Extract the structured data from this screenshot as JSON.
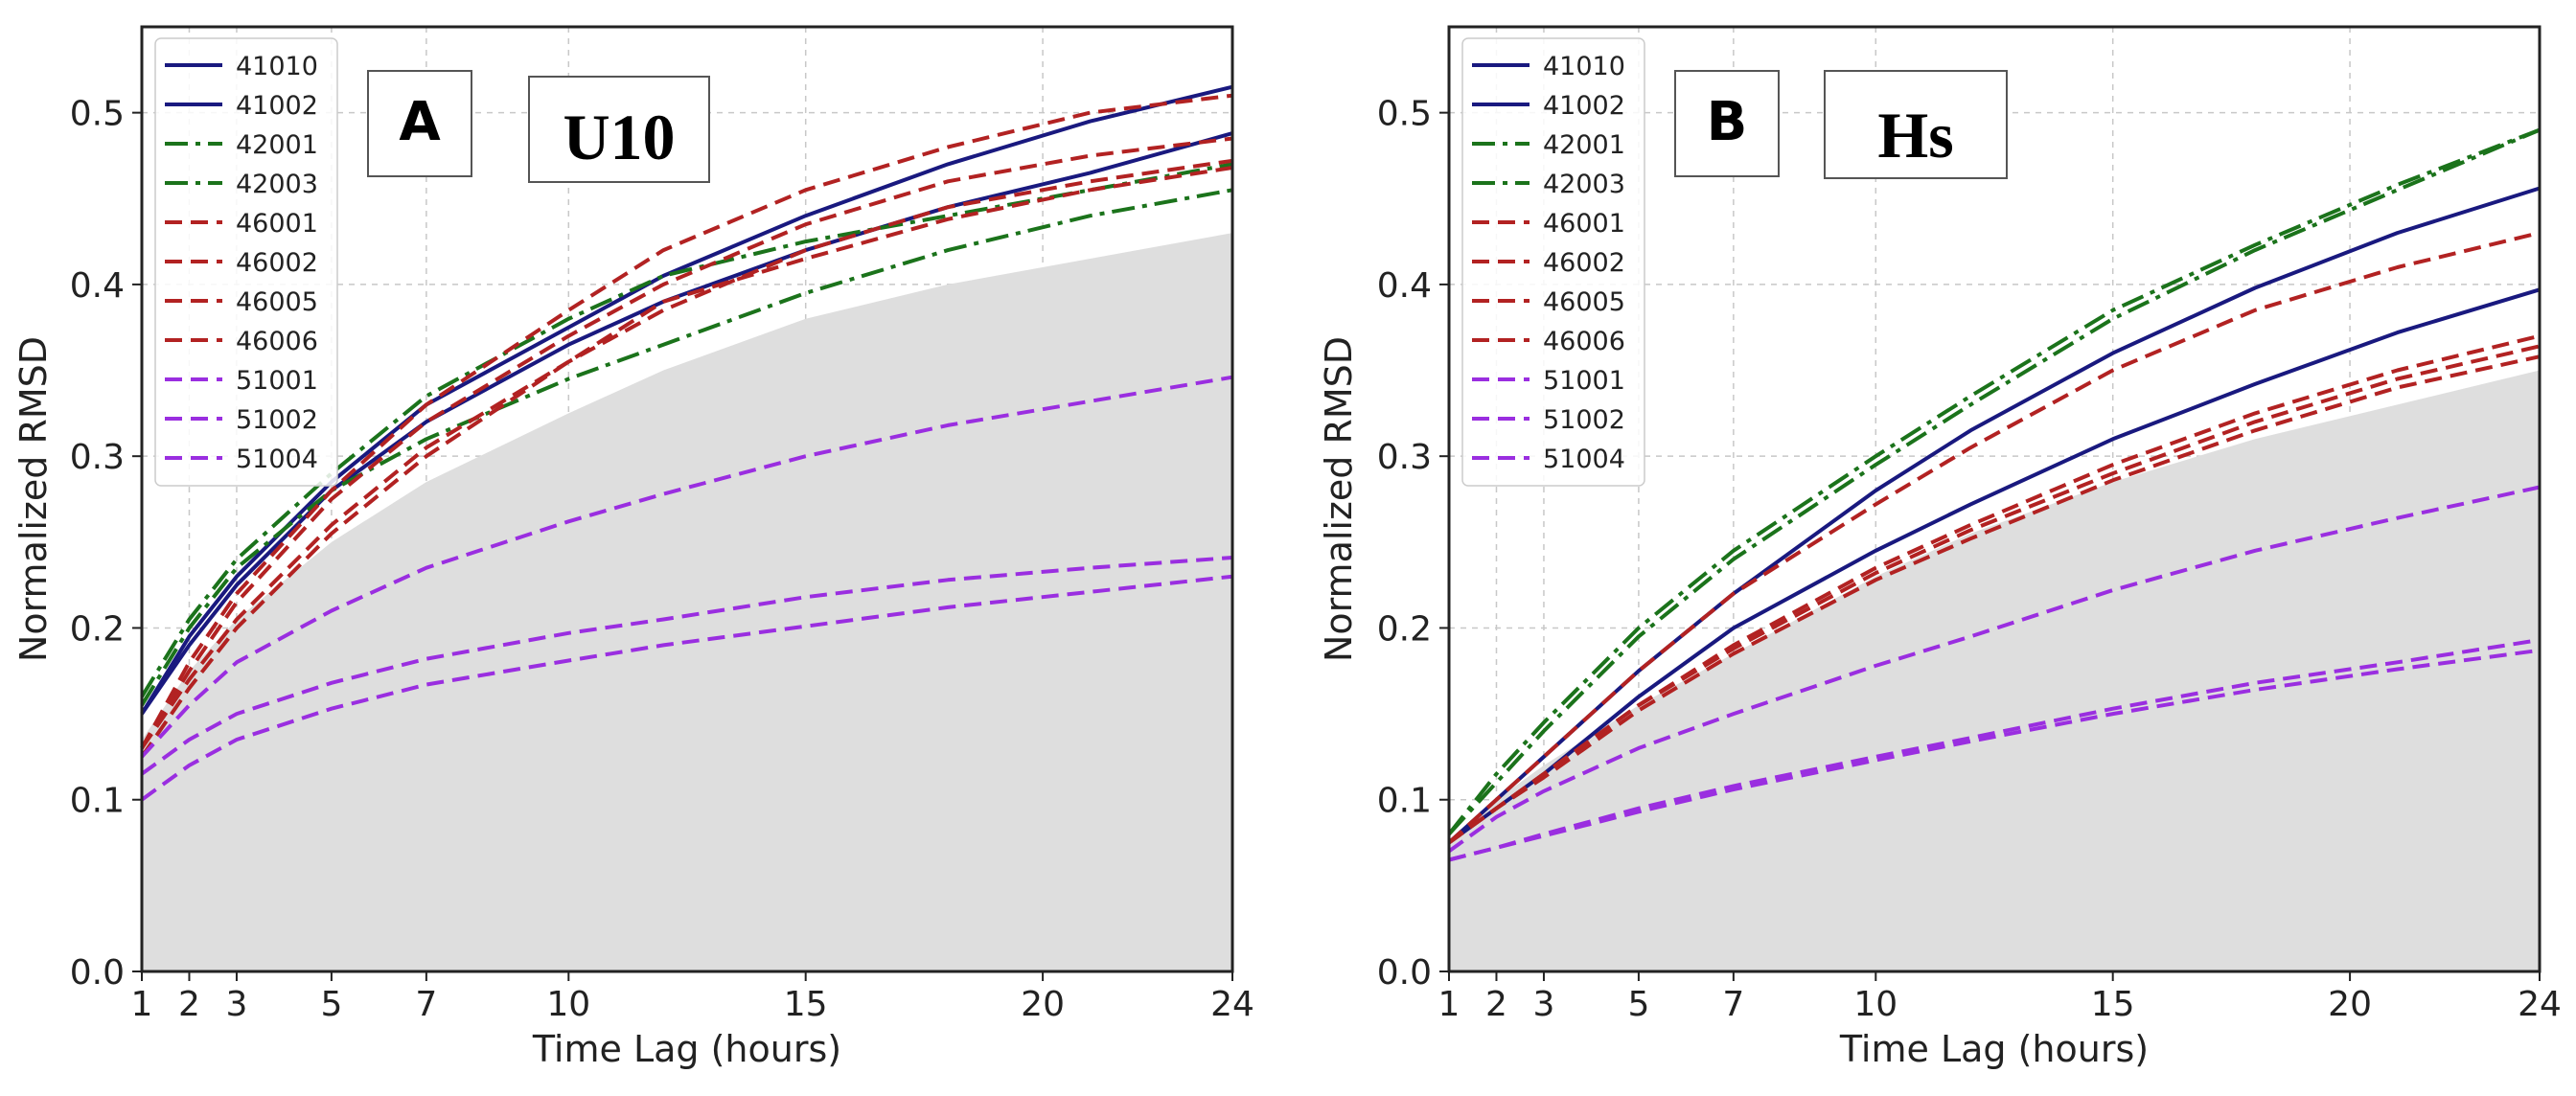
{
  "figure": {
    "x_label": "Time Lag (hours)",
    "y_label": "Normalized RMSD"
  },
  "colors": {
    "navy": "#19197f",
    "green": "#1b731b",
    "red": "#b22222",
    "purple": "#9a2ee0",
    "envelope": "#dedede",
    "grid": "#c8c8c8"
  },
  "chart_data": [
    {
      "type": "line",
      "panel": "A",
      "variable": "U10",
      "xlabel": "Time Lag (hours)",
      "ylabel": "Normalized RMSD",
      "xlim": [
        1,
        24
      ],
      "ylim": [
        0,
        0.55
      ],
      "xticks": [
        1,
        2,
        3,
        5,
        7,
        10,
        15,
        20,
        24
      ],
      "yticks": [
        0.0,
        0.1,
        0.2,
        0.3,
        0.4,
        0.5
      ],
      "grid": true,
      "legend_position": "top-left",
      "x": [
        1,
        2,
        3,
        5,
        7,
        10,
        12,
        15,
        18,
        21,
        24
      ],
      "envelope": [
        0.135,
        0.175,
        0.205,
        0.25,
        0.285,
        0.325,
        0.35,
        0.38,
        0.4,
        0.415,
        0.43
      ],
      "series": [
        {
          "name": "41010",
          "style": "solid",
          "color": "navy",
          "values": [
            0.15,
            0.195,
            0.23,
            0.285,
            0.33,
            0.375,
            0.405,
            0.44,
            0.47,
            0.495,
            0.515
          ]
        },
        {
          "name": "41002",
          "style": "solid",
          "color": "navy",
          "values": [
            0.15,
            0.19,
            0.225,
            0.28,
            0.32,
            0.365,
            0.39,
            0.42,
            0.445,
            0.465,
            0.488
          ]
        },
        {
          "name": "42001",
          "style": "dashdot",
          "color": "green",
          "values": [
            0.16,
            0.205,
            0.24,
            0.29,
            0.335,
            0.38,
            0.405,
            0.425,
            0.44,
            0.455,
            0.47
          ]
        },
        {
          "name": "42003",
          "style": "dashdot",
          "color": "green",
          "values": [
            0.155,
            0.2,
            0.235,
            0.28,
            0.31,
            0.345,
            0.365,
            0.395,
            0.42,
            0.44,
            0.455
          ]
        },
        {
          "name": "46001",
          "style": "dashed",
          "color": "red",
          "values": [
            0.13,
            0.18,
            0.22,
            0.28,
            0.33,
            0.385,
            0.42,
            0.455,
            0.48,
            0.5,
            0.51
          ]
        },
        {
          "name": "46002",
          "style": "dashed",
          "color": "red",
          "values": [
            0.13,
            0.175,
            0.215,
            0.275,
            0.32,
            0.37,
            0.4,
            0.435,
            0.46,
            0.475,
            0.485
          ]
        },
        {
          "name": "46005",
          "style": "dashed",
          "color": "red",
          "values": [
            0.13,
            0.17,
            0.205,
            0.26,
            0.305,
            0.355,
            0.385,
            0.42,
            0.445,
            0.46,
            0.472
          ]
        },
        {
          "name": "46006",
          "style": "dashed",
          "color": "red",
          "values": [
            0.125,
            0.165,
            0.2,
            0.255,
            0.3,
            0.355,
            0.39,
            0.415,
            0.438,
            0.455,
            0.468
          ]
        },
        {
          "name": "51001",
          "style": "dashed",
          "color": "purple",
          "values": [
            0.125,
            0.155,
            0.18,
            0.21,
            0.235,
            0.262,
            0.278,
            0.3,
            0.318,
            0.332,
            0.346
          ]
        },
        {
          "name": "51002",
          "style": "dashed",
          "color": "purple",
          "values": [
            0.115,
            0.135,
            0.15,
            0.168,
            0.182,
            0.197,
            0.205,
            0.218,
            0.228,
            0.235,
            0.241
          ]
        },
        {
          "name": "51004",
          "style": "dashed",
          "color": "purple",
          "values": [
            0.1,
            0.12,
            0.135,
            0.153,
            0.167,
            0.181,
            0.19,
            0.201,
            0.212,
            0.221,
            0.23
          ]
        }
      ]
    },
    {
      "type": "line",
      "panel": "B",
      "variable": "Hs",
      "xlabel": "Time Lag (hours)",
      "ylabel": "Normalized RMSD",
      "xlim": [
        1,
        24
      ],
      "ylim": [
        0,
        0.55
      ],
      "xticks": [
        1,
        2,
        3,
        5,
        7,
        10,
        15,
        20,
        24
      ],
      "yticks": [
        0.0,
        0.1,
        0.2,
        0.3,
        0.4,
        0.5
      ],
      "grid": true,
      "legend_position": "top-left",
      "x": [
        1,
        2,
        3,
        5,
        7,
        10,
        12,
        15,
        18,
        21,
        24
      ],
      "envelope": [
        0.075,
        0.1,
        0.12,
        0.155,
        0.185,
        0.23,
        0.255,
        0.285,
        0.31,
        0.33,
        0.35
      ],
      "series": [
        {
          "name": "41010",
          "style": "solid",
          "color": "navy",
          "values": [
            0.075,
            0.1,
            0.125,
            0.175,
            0.22,
            0.28,
            0.315,
            0.36,
            0.398,
            0.43,
            0.456
          ]
        },
        {
          "name": "41002",
          "style": "solid",
          "color": "navy",
          "values": [
            0.075,
            0.095,
            0.115,
            0.16,
            0.2,
            0.245,
            0.272,
            0.31,
            0.342,
            0.372,
            0.397
          ]
        },
        {
          "name": "42001",
          "style": "dashdot",
          "color": "green",
          "values": [
            0.08,
            0.115,
            0.145,
            0.2,
            0.245,
            0.3,
            0.335,
            0.385,
            0.423,
            0.458,
            0.49
          ]
        },
        {
          "name": "42003",
          "style": "dashdot",
          "color": "green",
          "values": [
            0.08,
            0.11,
            0.14,
            0.195,
            0.24,
            0.295,
            0.33,
            0.38,
            0.42,
            0.455,
            0.49
          ]
        },
        {
          "name": "46001",
          "style": "dashed",
          "color": "red",
          "values": [
            0.075,
            0.1,
            0.125,
            0.175,
            0.22,
            0.272,
            0.305,
            0.35,
            0.385,
            0.41,
            0.43
          ]
        },
        {
          "name": "46002",
          "style": "dashed",
          "color": "red",
          "values": [
            0.075,
            0.095,
            0.115,
            0.155,
            0.19,
            0.235,
            0.26,
            0.295,
            0.325,
            0.35,
            0.37
          ]
        },
        {
          "name": "46005",
          "style": "dashed",
          "color": "red",
          "values": [
            0.075,
            0.095,
            0.115,
            0.155,
            0.188,
            0.232,
            0.257,
            0.29,
            0.32,
            0.345,
            0.364
          ]
        },
        {
          "name": "46006",
          "style": "dashed",
          "color": "red",
          "values": [
            0.075,
            0.095,
            0.113,
            0.152,
            0.185,
            0.228,
            0.252,
            0.286,
            0.315,
            0.34,
            0.358
          ]
        },
        {
          "name": "51001",
          "style": "dashed",
          "color": "purple",
          "values": [
            0.07,
            0.09,
            0.105,
            0.13,
            0.15,
            0.178,
            0.195,
            0.222,
            0.245,
            0.264,
            0.282
          ]
        },
        {
          "name": "51002",
          "style": "dashed",
          "color": "purple",
          "values": [
            0.065,
            0.072,
            0.08,
            0.095,
            0.108,
            0.125,
            0.136,
            0.153,
            0.168,
            0.18,
            0.193
          ]
        },
        {
          "name": "51004",
          "style": "dashed",
          "color": "purple",
          "values": [
            0.065,
            0.072,
            0.079,
            0.093,
            0.106,
            0.123,
            0.134,
            0.15,
            0.164,
            0.176,
            0.187
          ]
        }
      ]
    }
  ]
}
